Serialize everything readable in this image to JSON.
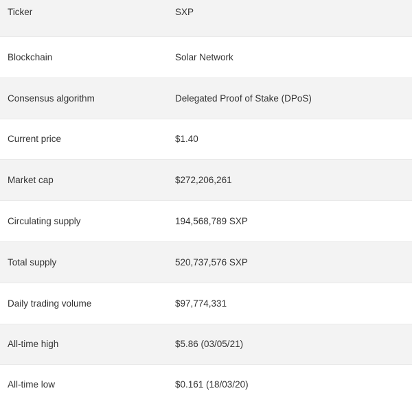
{
  "table": {
    "rows": [
      {
        "label": "Ticker",
        "value": "SXP"
      },
      {
        "label": "Blockchain",
        "value": "Solar Network"
      },
      {
        "label": "Consensus algorithm",
        "value": "Delegated Proof of Stake (DPoS)"
      },
      {
        "label": "Current price",
        "value": "$1.40"
      },
      {
        "label": "Market cap",
        "value": "$272,206,261"
      },
      {
        "label": "Circulating supply",
        "value": "194,568,789 SXP"
      },
      {
        "label": "Total supply",
        "value": "520,737,576 SXP"
      },
      {
        "label": "Daily trading volume",
        "value": "$97,774,331"
      },
      {
        "label": "All-time high",
        "value": "$5.86 (03/05/21)"
      },
      {
        "label": "All-time low",
        "value": "$0.161 (18/03/20)"
      }
    ]
  }
}
